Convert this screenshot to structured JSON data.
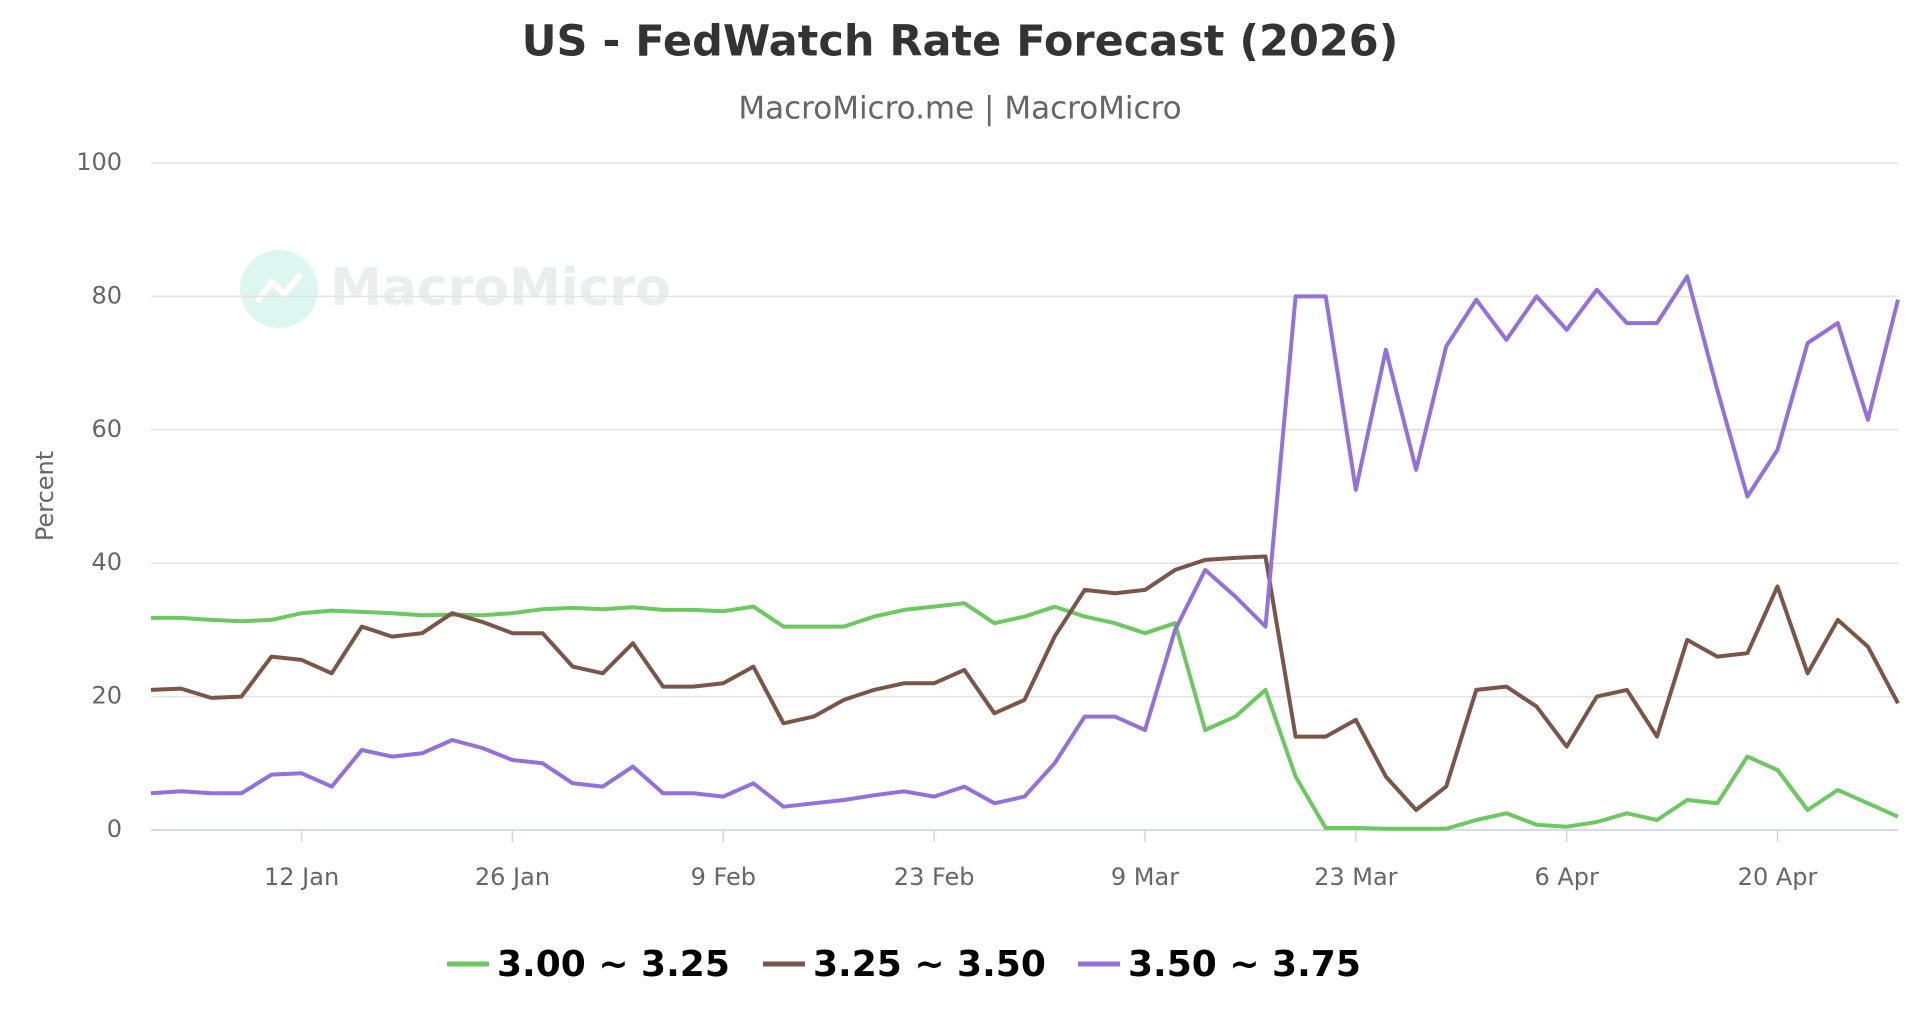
{
  "chart_data": {
    "type": "line",
    "title": "US - FedWatch Rate Forecast (2026)",
    "subtitle": "MacroMicro.me | MacroMicro",
    "watermark": "MacroMicro",
    "y_label": "Percent",
    "categories": [
      null,
      null,
      null,
      null,
      null,
      "12 Jan",
      null,
      null,
      null,
      null,
      null,
      null,
      "26 Jan",
      null,
      null,
      null,
      null,
      null,
      null,
      "9 Feb",
      null,
      null,
      null,
      null,
      null,
      null,
      "23 Feb",
      null,
      null,
      null,
      null,
      null,
      null,
      "9 Mar",
      null,
      null,
      null,
      null,
      null,
      null,
      "23 Mar",
      null,
      null,
      null,
      null,
      null,
      null,
      "6 Apr",
      null,
      null,
      null,
      null,
      null,
      null,
      "20 Apr",
      null,
      null,
      null,
      null
    ],
    "series": [
      {
        "name": "3.00 ~ 3.25",
        "color": "#6cc95f",
        "values": [
          31.8,
          31.8,
          31.5,
          31.3,
          31.5,
          32.5,
          32.9,
          32.7,
          32.5,
          32.2,
          32.3,
          32.2,
          32.5,
          33.1,
          33.3,
          33.1,
          33.4,
          33,
          33,
          32.8,
          33.5,
          30.5,
          30.5,
          30.5,
          32,
          33,
          33.5,
          34,
          31,
          32,
          33.5,
          32,
          31,
          29.5,
          31,
          15,
          17,
          21,
          8,
          0.3,
          0.3,
          0.2,
          0.2,
          0.2,
          1.5,
          2.5,
          0.8,
          0.5,
          1.2,
          2.5,
          1.5,
          4.5,
          4,
          11,
          9,
          3,
          6,
          4,
          2
        ]
      },
      {
        "name": "3.25 ~ 3.50",
        "color": "#7b5548",
        "values": [
          21,
          21.2,
          19.8,
          20,
          26,
          25.5,
          23.5,
          30.5,
          29,
          29.5,
          32.5,
          31.2,
          29.5,
          29.5,
          24.5,
          23.5,
          28,
          21.5,
          21.5,
          22,
          24.5,
          16,
          17,
          19.5,
          21,
          22,
          22,
          24,
          17.5,
          19.5,
          29,
          36,
          35.5,
          36,
          39,
          40.5,
          40.8,
          41,
          14,
          14,
          16.5,
          8,
          3,
          6.5,
          21,
          21.5,
          18.5,
          12.5,
          20,
          21,
          14,
          28.5,
          26,
          26.5,
          36.5,
          23.5,
          31.5,
          27.5,
          19
        ]
      },
      {
        "name": "3.50 ~ 3.75",
        "color": "#9370db",
        "values": [
          5.5,
          5.8,
          5.5,
          5.5,
          8.3,
          8.5,
          6.5,
          12,
          11,
          11.5,
          13.5,
          12.3,
          10.5,
          10,
          7,
          6.5,
          9.5,
          5.5,
          5.5,
          5,
          7,
          3.5,
          4,
          4.5,
          5.2,
          5.8,
          5,
          6.5,
          4,
          5,
          10,
          17,
          17,
          15,
          30,
          39,
          35,
          30.5,
          80,
          80,
          51,
          72,
          54,
          72.5,
          79.5,
          73.5,
          80,
          75,
          81,
          76,
          76,
          83,
          66,
          50,
          57,
          73,
          76,
          61.5,
          79.5
        ]
      }
    ],
    "ylim": [
      0,
      100
    ],
    "yticks": [
      0,
      20,
      40,
      60,
      80,
      100
    ],
    "grid": true,
    "legend": "bottom"
  }
}
